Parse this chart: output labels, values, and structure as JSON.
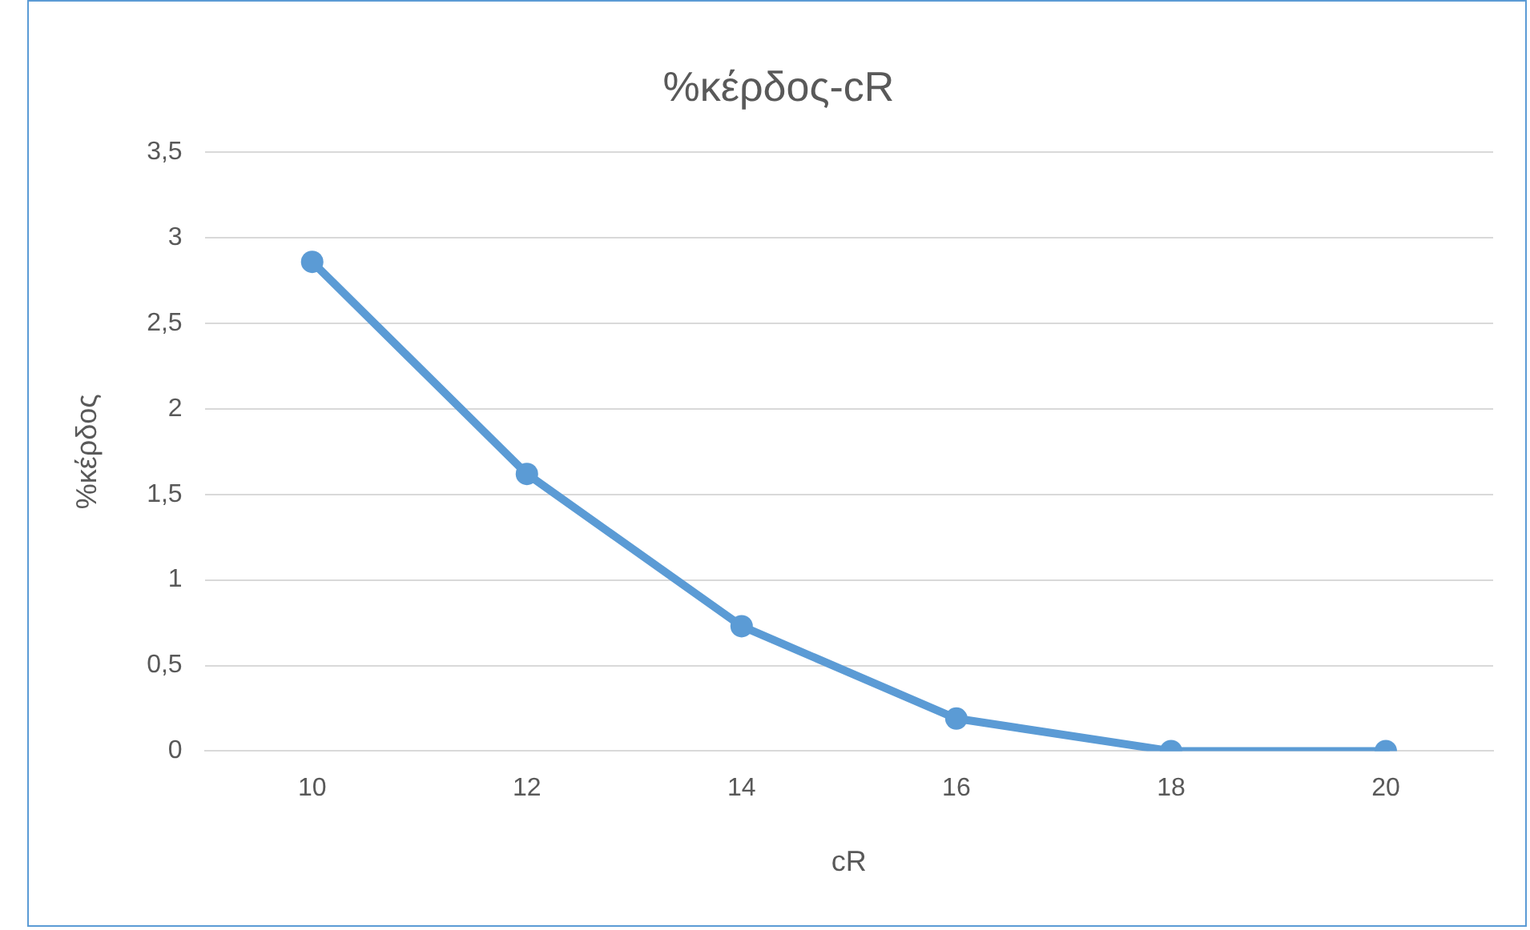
{
  "chart_data": {
    "type": "line",
    "title": "%κέρδος-cR",
    "xlabel": "cR",
    "ylabel": "%κέρδος",
    "categories": [
      "10",
      "12",
      "14",
      "16",
      "18",
      "20"
    ],
    "series": [
      {
        "color": "#5b9bd5",
        "values": [
          2.86,
          1.62,
          0.73,
          0.19,
          0,
          0
        ]
      }
    ],
    "ylim": [
      0,
      3.5
    ],
    "yticks": [
      0,
      {
        "value": 0.5,
        "label": "0,5"
      },
      1,
      {
        "value": 1.5,
        "label": "1,5"
      },
      2,
      {
        "value": 2.5,
        "label": "2,5"
      },
      3,
      {
        "value": 3.5,
        "label": "3,5"
      }
    ],
    "grid": "y",
    "legend": false,
    "marker": "circle",
    "line_style": "solid"
  }
}
